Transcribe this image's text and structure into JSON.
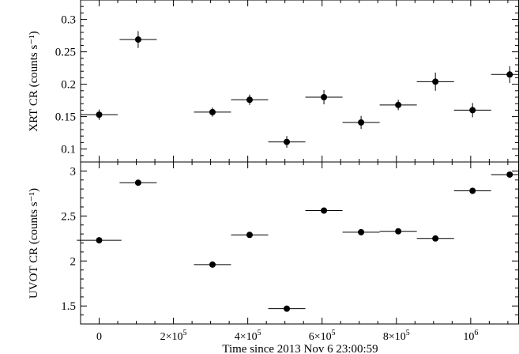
{
  "chart_data": [
    {
      "type": "scatter",
      "ylabel": "XRT CR (counts s⁻¹)",
      "ylim": [
        0.08,
        0.33
      ],
      "yticks": [
        0.1,
        0.15,
        0.2,
        0.25,
        0.3
      ],
      "ytick_labels": [
        "0.1",
        "0.15",
        "0.2",
        "0.25",
        "0.3"
      ],
      "error_bars": true,
      "points": [
        {
          "x": 0,
          "xerr": 50000,
          "y": 0.153,
          "yerr": 0.008
        },
        {
          "x": 105000,
          "xerr": 50000,
          "y": 0.269,
          "yerr": 0.013
        },
        {
          "x": 305000,
          "xerr": 50000,
          "y": 0.157,
          "yerr": 0.007
        },
        {
          "x": 405000,
          "xerr": 50000,
          "y": 0.176,
          "yerr": 0.008
        },
        {
          "x": 505000,
          "xerr": 50000,
          "y": 0.111,
          "yerr": 0.009
        },
        {
          "x": 605000,
          "xerr": 50000,
          "y": 0.18,
          "yerr": 0.011
        },
        {
          "x": 705000,
          "xerr": 50000,
          "y": 0.141,
          "yerr": 0.01
        },
        {
          "x": 805000,
          "xerr": 50000,
          "y": 0.168,
          "yerr": 0.008
        },
        {
          "x": 905000,
          "xerr": 50000,
          "y": 0.204,
          "yerr": 0.014
        },
        {
          "x": 1005000,
          "xerr": 50000,
          "y": 0.16,
          "yerr": 0.011
        },
        {
          "x": 1105000,
          "xerr": 50000,
          "y": 0.215,
          "yerr": 0.013
        }
      ]
    },
    {
      "type": "scatter",
      "ylabel": "UVOT CR (counts s⁻¹)",
      "xlabel": "Time since 2013 Nov 6  23:00:59",
      "ylim": [
        1.3,
        3.1
      ],
      "yticks": [
        1.5,
        2,
        2.5,
        3
      ],
      "ytick_labels": [
        "1.5",
        "2",
        "2.5",
        "3"
      ],
      "error_bars": true,
      "points": [
        {
          "x": 0,
          "xerr": 60000,
          "y": 2.23,
          "yerr": 0.012
        },
        {
          "x": 105000,
          "xerr": 50000,
          "y": 2.87,
          "yerr": 0.025
        },
        {
          "x": 305000,
          "xerr": 50000,
          "y": 1.96,
          "yerr": 0.01
        },
        {
          "x": 405000,
          "xerr": 50000,
          "y": 2.29,
          "yerr": 0.012
        },
        {
          "x": 505000,
          "xerr": 50000,
          "y": 1.47,
          "yerr": 0.01
        },
        {
          "x": 605000,
          "xerr": 50000,
          "y": 2.56,
          "yerr": 0.03
        },
        {
          "x": 705000,
          "xerr": 50000,
          "y": 2.32,
          "yerr": 0.03
        },
        {
          "x": 805000,
          "xerr": 50000,
          "y": 2.33,
          "yerr": 0.01
        },
        {
          "x": 905000,
          "xerr": 50000,
          "y": 2.25,
          "yerr": 0.03
        },
        {
          "x": 1005000,
          "xerr": 50000,
          "y": 2.78,
          "yerr": 0.03
        },
        {
          "x": 1105000,
          "xerr": 50000,
          "y": 2.96,
          "yerr": 0.03
        }
      ]
    }
  ],
  "x_axis": {
    "xlim": [
      -50000,
      1130000
    ],
    "ticks": [
      0,
      200000,
      400000,
      600000,
      800000,
      1000000
    ],
    "tick_labels": [
      {
        "base": "0",
        "exp": ""
      },
      {
        "base": "2×10",
        "exp": "5"
      },
      {
        "base": "4×10",
        "exp": "5"
      },
      {
        "base": "6×10",
        "exp": "5"
      },
      {
        "base": "8×10",
        "exp": "5"
      },
      {
        "base": "10",
        "exp": "6"
      }
    ],
    "minor_step": 50000
  }
}
